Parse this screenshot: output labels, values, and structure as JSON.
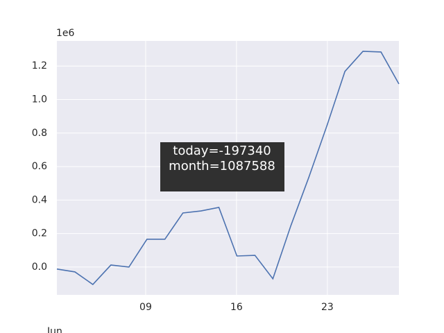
{
  "chart_data": {
    "type": "line",
    "x": [
      2.16,
      3.55,
      4.93,
      6.32,
      7.71,
      9.1,
      10.48,
      11.87,
      13.26,
      14.64,
      16.03,
      17.42,
      18.8,
      20.19,
      21.58,
      22.97,
      24.35,
      25.74,
      27.13,
      28.51
    ],
    "series": [
      {
        "color": "#4c72b0",
        "values": [
          -0.012,
          -0.029,
          -0.104,
          0.012,
          0.0,
          0.166,
          0.166,
          0.323,
          0.335,
          0.356,
          0.066,
          0.07,
          -0.07,
          0.248,
          0.538,
          0.845,
          1.168,
          1.288,
          1.284,
          1.093
        ]
      }
    ],
    "xlim": [
      2.16,
      28.51
    ],
    "xticks": [
      {
        "value": 9,
        "label": "09"
      },
      16,
      23
    ],
    "x_offset_label": "Jun",
    "ylim": [
      -0.166,
      1.35
    ],
    "yticks": [
      {
        "value": 0,
        "label": "0.0"
      },
      0.2,
      0.4,
      0.6,
      0.8,
      {
        "value": 1,
        "label": "1.0"
      },
      1.2
    ],
    "y_offset_label": "1e6",
    "grid": true,
    "tooltip": [
      "today=-197340",
      "month=1087588"
    ]
  }
}
